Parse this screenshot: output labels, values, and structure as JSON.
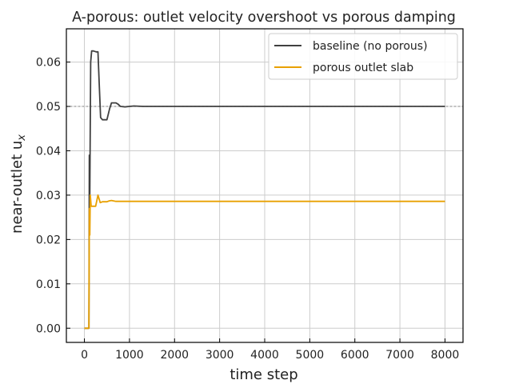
{
  "chart_data": {
    "type": "line",
    "title": "A-porous: outlet velocity overshoot vs porous damping",
    "xlabel": "time step",
    "ylabel": "near-outlet u",
    "ylabel_subscript": "x",
    "xlim": [
      -400,
      8400
    ],
    "ylim": [
      -0.0032,
      0.0675
    ],
    "x_ticks": [
      0,
      1000,
      2000,
      3000,
      4000,
      5000,
      6000,
      7000,
      8000
    ],
    "x_tick_labels": [
      "0",
      "1000",
      "2000",
      "3000",
      "4000",
      "5000",
      "6000",
      "7000",
      "8000"
    ],
    "y_ticks": [
      0.0,
      0.01,
      0.02,
      0.03,
      0.04,
      0.05,
      0.06
    ],
    "y_tick_labels": [
      "0.00",
      "0.01",
      "0.02",
      "0.03",
      "0.04",
      "0.05",
      "0.06"
    ],
    "grid": true,
    "legend_position": "top-right",
    "reference_line": {
      "y": 0.05,
      "style": "dotted",
      "color": "#999999"
    },
    "series": [
      {
        "name": "baseline (no porous)",
        "color": "#404040",
        "points": [
          [
            0,
            0
          ],
          [
            100,
            0
          ],
          [
            110,
            0.039
          ],
          [
            120,
            0.03
          ],
          [
            140,
            0.06
          ],
          [
            160,
            0.0625
          ],
          [
            200,
            0.0625
          ],
          [
            260,
            0.0623
          ],
          [
            300,
            0.0623
          ],
          [
            330,
            0.055
          ],
          [
            360,
            0.0475
          ],
          [
            400,
            0.047
          ],
          [
            500,
            0.047
          ],
          [
            560,
            0.0495
          ],
          [
            600,
            0.0508
          ],
          [
            700,
            0.0508
          ],
          [
            750,
            0.0505
          ],
          [
            800,
            0.05
          ],
          [
            900,
            0.0499
          ],
          [
            1000,
            0.05
          ],
          [
            1100,
            0.0501
          ],
          [
            1300,
            0.05
          ],
          [
            8000,
            0.05
          ]
        ]
      },
      {
        "name": "porous outlet slab",
        "color": "#E8A000",
        "points": [
          [
            0,
            0
          ],
          [
            100,
            0
          ],
          [
            110,
            0.027
          ],
          [
            120,
            0.021
          ],
          [
            130,
            0.03
          ],
          [
            150,
            0.0275
          ],
          [
            250,
            0.0275
          ],
          [
            300,
            0.03
          ],
          [
            350,
            0.0283
          ],
          [
            400,
            0.0285
          ],
          [
            500,
            0.0285
          ],
          [
            550,
            0.0287
          ],
          [
            600,
            0.0288
          ],
          [
            700,
            0.0286
          ],
          [
            800,
            0.0286
          ],
          [
            8000,
            0.0286
          ]
        ]
      }
    ]
  }
}
